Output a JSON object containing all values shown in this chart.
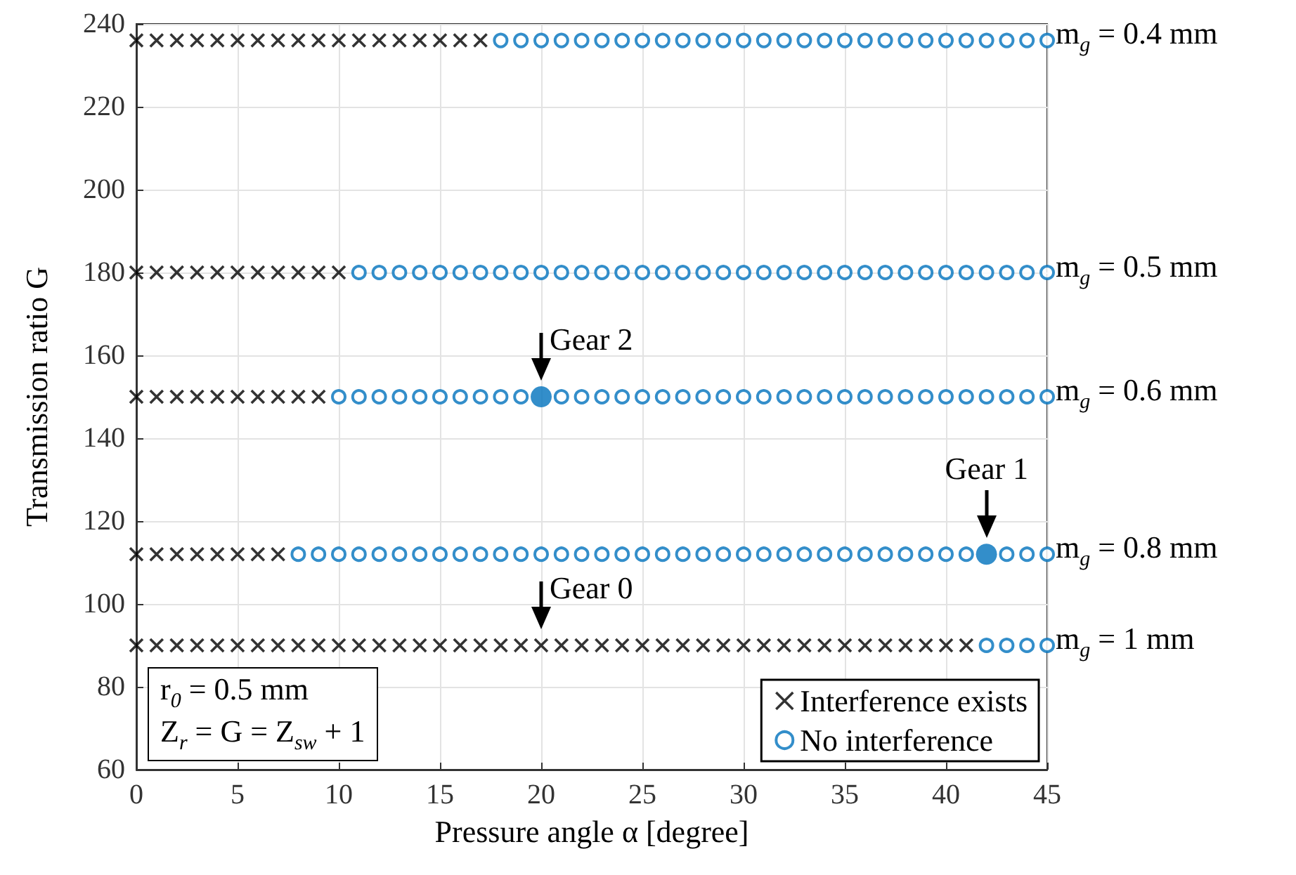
{
  "chart_data": {
    "type": "scatter",
    "xlabel": "Pressure angle α [degree]",
    "ylabel": "Transmission ratio G",
    "xlim": [
      0,
      45
    ],
    "xticks": [
      0,
      5,
      10,
      15,
      20,
      25,
      30,
      35,
      40,
      45
    ],
    "ylim": [
      60,
      240
    ],
    "yticks": [
      60,
      80,
      100,
      120,
      140,
      160,
      180,
      200,
      220,
      240
    ],
    "grid": true,
    "legend": "bottom right",
    "series": [
      {
        "name": "Interference exists",
        "color": "#000000",
        "marker": "cross",
        "x": [
          0,
          1,
          2,
          3,
          4,
          5,
          6,
          7,
          8,
          9,
          10,
          11,
          12,
          13,
          14,
          15,
          16,
          17,
          0,
          1,
          2,
          3,
          4,
          5,
          6,
          7,
          8,
          9,
          10,
          0,
          1,
          2,
          3,
          4,
          5,
          6,
          7,
          8,
          9,
          0,
          1,
          2,
          3,
          4,
          5,
          6,
          7,
          0,
          1,
          2,
          3,
          4,
          5,
          6,
          7,
          8,
          9,
          10,
          11,
          12,
          13,
          14,
          15,
          16,
          17,
          18,
          19,
          20,
          21,
          22,
          23,
          24,
          25,
          26,
          27,
          28,
          29,
          30,
          31,
          32,
          33,
          34,
          35,
          36,
          37,
          38,
          39,
          40,
          41
        ],
        "values": [
          236,
          236,
          236,
          236,
          236,
          236,
          236,
          236,
          236,
          236,
          236,
          236,
          236,
          236,
          236,
          236,
          236,
          236,
          180,
          180,
          180,
          180,
          180,
          180,
          180,
          180,
          180,
          180,
          180,
          150,
          150,
          150,
          150,
          150,
          150,
          150,
          150,
          150,
          150,
          112,
          112,
          112,
          112,
          112,
          112,
          112,
          112,
          90,
          90,
          90,
          90,
          90,
          90,
          90,
          90,
          90,
          90,
          90,
          90,
          90,
          90,
          90,
          90,
          90,
          90,
          90,
          90,
          90,
          90,
          90,
          90,
          90,
          90,
          90,
          90,
          90,
          90,
          90,
          90,
          90,
          90,
          90,
          90,
          90,
          90,
          90,
          90,
          90,
          90
        ]
      },
      {
        "name": "No interference",
        "color": "#0072bd",
        "marker": "circle",
        "x": [
          18,
          19,
          20,
          21,
          22,
          23,
          24,
          25,
          26,
          27,
          28,
          29,
          30,
          31,
          32,
          33,
          34,
          35,
          36,
          37,
          38,
          39,
          40,
          41,
          42,
          43,
          44,
          45,
          11,
          12,
          13,
          14,
          15,
          16,
          17,
          18,
          19,
          20,
          21,
          22,
          23,
          24,
          25,
          26,
          27,
          28,
          29,
          30,
          31,
          32,
          33,
          34,
          35,
          36,
          37,
          38,
          39,
          40,
          41,
          42,
          43,
          44,
          45,
          10,
          11,
          12,
          13,
          14,
          15,
          16,
          17,
          18,
          19,
          21,
          22,
          23,
          24,
          25,
          26,
          27,
          28,
          29,
          30,
          31,
          32,
          33,
          34,
          35,
          36,
          37,
          38,
          39,
          40,
          41,
          42,
          43,
          44,
          45,
          8,
          9,
          10,
          11,
          12,
          13,
          14,
          15,
          16,
          17,
          18,
          19,
          20,
          21,
          22,
          23,
          24,
          25,
          26,
          27,
          28,
          29,
          30,
          31,
          32,
          33,
          34,
          35,
          36,
          37,
          38,
          39,
          40,
          41,
          43,
          44,
          45,
          42,
          43,
          44,
          45
        ],
        "values": [
          236,
          236,
          236,
          236,
          236,
          236,
          236,
          236,
          236,
          236,
          236,
          236,
          236,
          236,
          236,
          236,
          236,
          236,
          236,
          236,
          236,
          236,
          236,
          236,
          236,
          236,
          236,
          236,
          180,
          180,
          180,
          180,
          180,
          180,
          180,
          180,
          180,
          180,
          180,
          180,
          180,
          180,
          180,
          180,
          180,
          180,
          180,
          180,
          180,
          180,
          180,
          180,
          180,
          180,
          180,
          180,
          180,
          180,
          180,
          180,
          180,
          180,
          180,
          150,
          150,
          150,
          150,
          150,
          150,
          150,
          150,
          150,
          150,
          150,
          150,
          150,
          150,
          150,
          150,
          150,
          150,
          150,
          150,
          150,
          150,
          150,
          150,
          150,
          150,
          150,
          150,
          150,
          150,
          150,
          150,
          150,
          150,
          150,
          112,
          112,
          112,
          112,
          112,
          112,
          112,
          112,
          112,
          112,
          112,
          112,
          112,
          112,
          112,
          112,
          112,
          112,
          112,
          112,
          112,
          112,
          112,
          112,
          112,
          112,
          112,
          112,
          112,
          112,
          112,
          112,
          112,
          112,
          112,
          112,
          112,
          90,
          90,
          90,
          90
        ]
      },
      {
        "color": "#0072bd",
        "marker": "circle",
        "x": [
          20,
          42
        ],
        "values": [
          150,
          112
        ]
      }
    ],
    "annotations": [
      {
        "text": "m$_{g}$ = 0.4 mm",
        "x": 45,
        "y": 236
      },
      {
        "text": "m$_{g}$ = 0.5 mm",
        "x": 45,
        "y": 180
      },
      {
        "text": "m$_{g}$ = 0.6 mm",
        "x": 45,
        "y": 150
      },
      {
        "text": "m$_{g}$ = 0.8 mm",
        "x": 45,
        "y": 112
      },
      {
        "text": "m$_{g}$ = 1 mm",
        "x": 45,
        "y": 90
      },
      {
        "text": "Gear 2",
        "x": 20,
        "y": 150
      },
      {
        "text": "Gear 1",
        "x": 42,
        "y": 112
      },
      {
        "text": "Gear 0",
        "x": 20,
        "y": 90
      },
      "r$_{0}$ = 0.5 mm",
      "Z$_{r}$ = G = Z$_{sw}$ + 1"
    ]
  }
}
